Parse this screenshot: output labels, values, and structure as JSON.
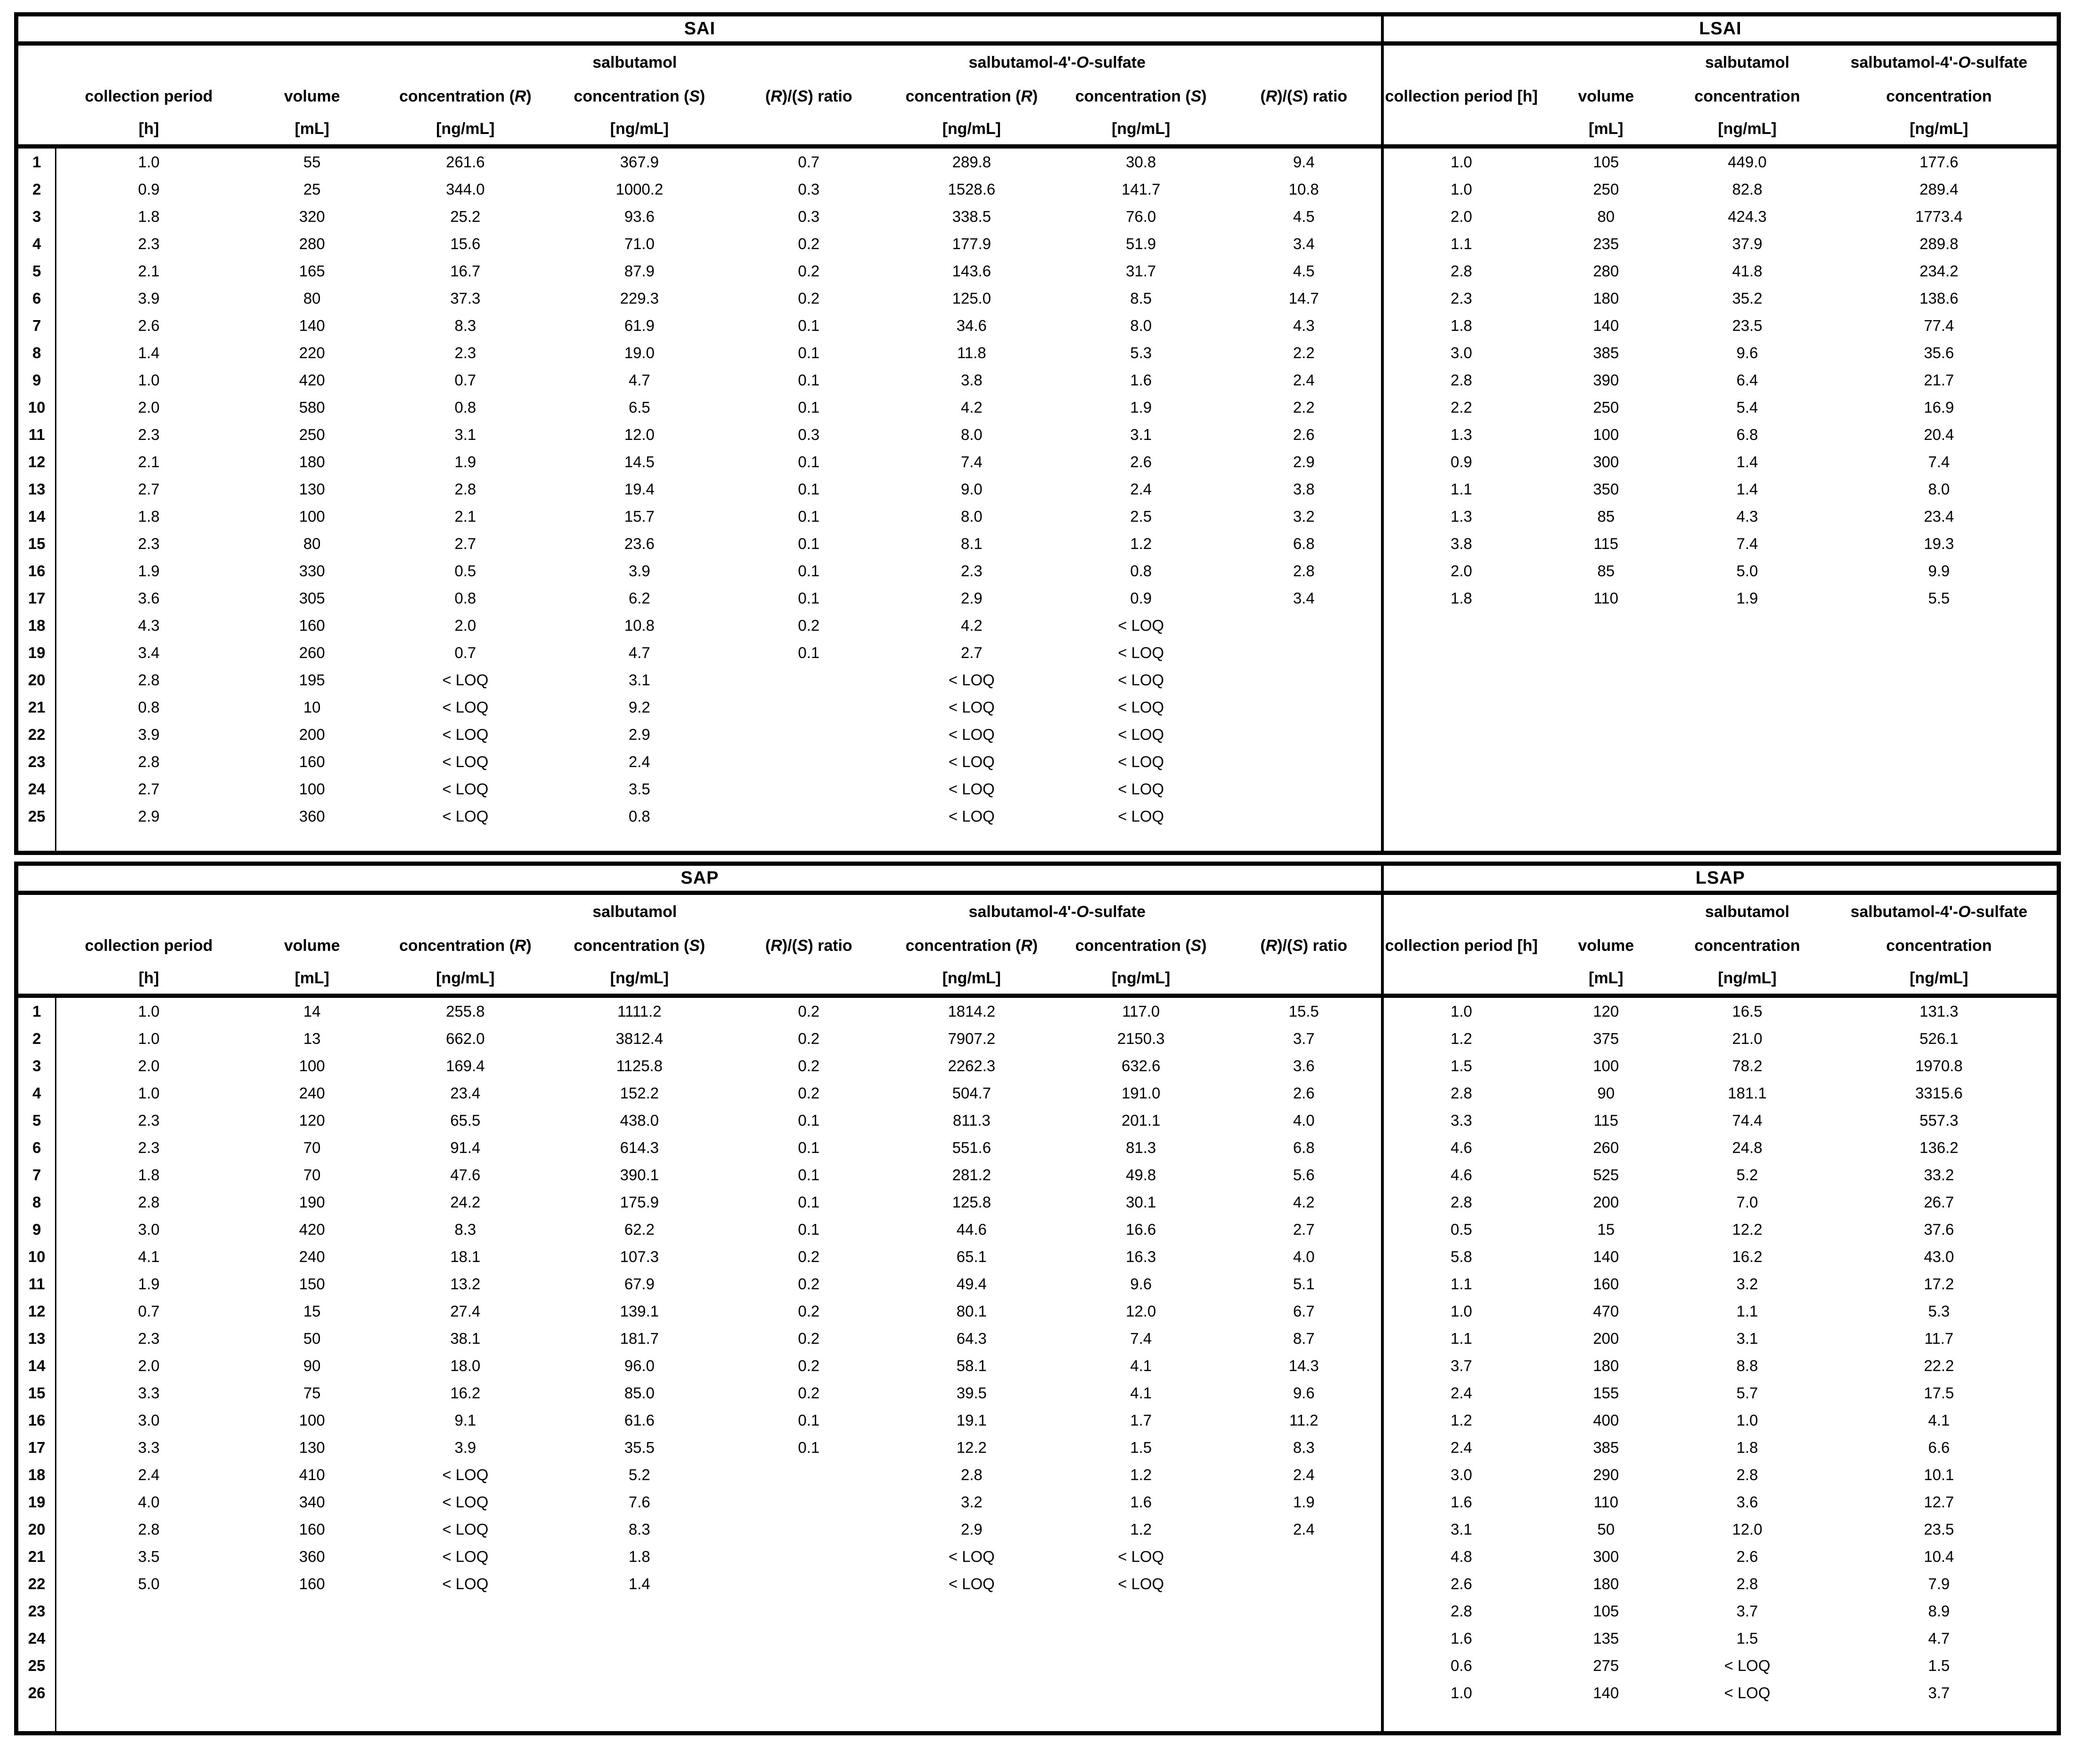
{
  "headers_left": {
    "group_salbutamol": "salbutamol",
    "group_sulfate": "salbutamol-4'-O-sulfate",
    "collection_period": "collection period",
    "collection_period_unit": "[h]",
    "volume": "volume",
    "volume_unit": "[mL]",
    "concentration_r": "concentration (R)",
    "concentration_s": "concentration (S)",
    "concentration_unit": "[ng/mL]",
    "ratio": "(R)/(S) ratio"
  },
  "headers_right": {
    "group_salbutamol": "salbutamol",
    "group_sulfate": "salbutamol-4'-O-sulfate",
    "collection_period": "collection period [h]",
    "volume": "volume",
    "volume_unit": "[mL]",
    "concentration": "concentration",
    "concentration_unit": "[ng/mL]"
  },
  "sections": {
    "sai": {
      "title": "SAI",
      "rows": [
        [
          "1",
          "1.0",
          "55",
          "261.6",
          "367.9",
          "0.7",
          "289.8",
          "30.8",
          "9.4"
        ],
        [
          "2",
          "0.9",
          "25",
          "344.0",
          "1000.2",
          "0.3",
          "1528.6",
          "141.7",
          "10.8"
        ],
        [
          "3",
          "1.8",
          "320",
          "25.2",
          "93.6",
          "0.3",
          "338.5",
          "76.0",
          "4.5"
        ],
        [
          "4",
          "2.3",
          "280",
          "15.6",
          "71.0",
          "0.2",
          "177.9",
          "51.9",
          "3.4"
        ],
        [
          "5",
          "2.1",
          "165",
          "16.7",
          "87.9",
          "0.2",
          "143.6",
          "31.7",
          "4.5"
        ],
        [
          "6",
          "3.9",
          "80",
          "37.3",
          "229.3",
          "0.2",
          "125.0",
          "8.5",
          "14.7"
        ],
        [
          "7",
          "2.6",
          "140",
          "8.3",
          "61.9",
          "0.1",
          "34.6",
          "8.0",
          "4.3"
        ],
        [
          "8",
          "1.4",
          "220",
          "2.3",
          "19.0",
          "0.1",
          "11.8",
          "5.3",
          "2.2"
        ],
        [
          "9",
          "1.0",
          "420",
          "0.7",
          "4.7",
          "0.1",
          "3.8",
          "1.6",
          "2.4"
        ],
        [
          "10",
          "2.0",
          "580",
          "0.8",
          "6.5",
          "0.1",
          "4.2",
          "1.9",
          "2.2"
        ],
        [
          "11",
          "2.3",
          "250",
          "3.1",
          "12.0",
          "0.3",
          "8.0",
          "3.1",
          "2.6"
        ],
        [
          "12",
          "2.1",
          "180",
          "1.9",
          "14.5",
          "0.1",
          "7.4",
          "2.6",
          "2.9"
        ],
        [
          "13",
          "2.7",
          "130",
          "2.8",
          "19.4",
          "0.1",
          "9.0",
          "2.4",
          "3.8"
        ],
        [
          "14",
          "1.8",
          "100",
          "2.1",
          "15.7",
          "0.1",
          "8.0",
          "2.5",
          "3.2"
        ],
        [
          "15",
          "2.3",
          "80",
          "2.7",
          "23.6",
          "0.1",
          "8.1",
          "1.2",
          "6.8"
        ],
        [
          "16",
          "1.9",
          "330",
          "0.5",
          "3.9",
          "0.1",
          "2.3",
          "0.8",
          "2.8"
        ],
        [
          "17",
          "3.6",
          "305",
          "0.8",
          "6.2",
          "0.1",
          "2.9",
          "0.9",
          "3.4"
        ],
        [
          "18",
          "4.3",
          "160",
          "2.0",
          "10.8",
          "0.2",
          "4.2",
          "< LOQ",
          ""
        ],
        [
          "19",
          "3.4",
          "260",
          "0.7",
          "4.7",
          "0.1",
          "2.7",
          "< LOQ",
          ""
        ],
        [
          "20",
          "2.8",
          "195",
          "< LOQ",
          "3.1",
          "",
          "< LOQ",
          "< LOQ",
          ""
        ],
        [
          "21",
          "0.8",
          "10",
          "< LOQ",
          "9.2",
          "",
          "< LOQ",
          "< LOQ",
          ""
        ],
        [
          "22",
          "3.9",
          "200",
          "< LOQ",
          "2.9",
          "",
          "< LOQ",
          "< LOQ",
          ""
        ],
        [
          "23",
          "2.8",
          "160",
          "< LOQ",
          "2.4",
          "",
          "< LOQ",
          "< LOQ",
          ""
        ],
        [
          "24",
          "2.7",
          "100",
          "< LOQ",
          "3.5",
          "",
          "< LOQ",
          "< LOQ",
          ""
        ],
        [
          "25",
          "2.9",
          "360",
          "< LOQ",
          "0.8",
          "",
          "< LOQ",
          "< LOQ",
          ""
        ]
      ]
    },
    "lsai": {
      "title": "LSAI",
      "rows": [
        [
          "1.0",
          "105",
          "449.0",
          "177.6"
        ],
        [
          "1.0",
          "250",
          "82.8",
          "289.4"
        ],
        [
          "2.0",
          "80",
          "424.3",
          "1773.4"
        ],
        [
          "1.1",
          "235",
          "37.9",
          "289.8"
        ],
        [
          "2.8",
          "280",
          "41.8",
          "234.2"
        ],
        [
          "2.3",
          "180",
          "35.2",
          "138.6"
        ],
        [
          "1.8",
          "140",
          "23.5",
          "77.4"
        ],
        [
          "3.0",
          "385",
          "9.6",
          "35.6"
        ],
        [
          "2.8",
          "390",
          "6.4",
          "21.7"
        ],
        [
          "2.2",
          "250",
          "5.4",
          "16.9"
        ],
        [
          "1.3",
          "100",
          "6.8",
          "20.4"
        ],
        [
          "0.9",
          "300",
          "1.4",
          "7.4"
        ],
        [
          "1.1",
          "350",
          "1.4",
          "8.0"
        ],
        [
          "1.3",
          "85",
          "4.3",
          "23.4"
        ],
        [
          "3.8",
          "115",
          "7.4",
          "19.3"
        ],
        [
          "2.0",
          "85",
          "5.0",
          "9.9"
        ],
        [
          "1.8",
          "110",
          "1.9",
          "5.5"
        ]
      ]
    },
    "sap": {
      "title": "SAP",
      "rows": [
        [
          "1",
          "1.0",
          "14",
          "255.8",
          "1111.2",
          "0.2",
          "1814.2",
          "117.0",
          "15.5"
        ],
        [
          "2",
          "1.0",
          "13",
          "662.0",
          "3812.4",
          "0.2",
          "7907.2",
          "2150.3",
          "3.7"
        ],
        [
          "3",
          "2.0",
          "100",
          "169.4",
          "1125.8",
          "0.2",
          "2262.3",
          "632.6",
          "3.6"
        ],
        [
          "4",
          "1.0",
          "240",
          "23.4",
          "152.2",
          "0.2",
          "504.7",
          "191.0",
          "2.6"
        ],
        [
          "5",
          "2.3",
          "120",
          "65.5",
          "438.0",
          "0.1",
          "811.3",
          "201.1",
          "4.0"
        ],
        [
          "6",
          "2.3",
          "70",
          "91.4",
          "614.3",
          "0.1",
          "551.6",
          "81.3",
          "6.8"
        ],
        [
          "7",
          "1.8",
          "70",
          "47.6",
          "390.1",
          "0.1",
          "281.2",
          "49.8",
          "5.6"
        ],
        [
          "8",
          "2.8",
          "190",
          "24.2",
          "175.9",
          "0.1",
          "125.8",
          "30.1",
          "4.2"
        ],
        [
          "9",
          "3.0",
          "420",
          "8.3",
          "62.2",
          "0.1",
          "44.6",
          "16.6",
          "2.7"
        ],
        [
          "10",
          "4.1",
          "240",
          "18.1",
          "107.3",
          "0.2",
          "65.1",
          "16.3",
          "4.0"
        ],
        [
          "11",
          "1.9",
          "150",
          "13.2",
          "67.9",
          "0.2",
          "49.4",
          "9.6",
          "5.1"
        ],
        [
          "12",
          "0.7",
          "15",
          "27.4",
          "139.1",
          "0.2",
          "80.1",
          "12.0",
          "6.7"
        ],
        [
          "13",
          "2.3",
          "50",
          "38.1",
          "181.7",
          "0.2",
          "64.3",
          "7.4",
          "8.7"
        ],
        [
          "14",
          "2.0",
          "90",
          "18.0",
          "96.0",
          "0.2",
          "58.1",
          "4.1",
          "14.3"
        ],
        [
          "15",
          "3.3",
          "75",
          "16.2",
          "85.0",
          "0.2",
          "39.5",
          "4.1",
          "9.6"
        ],
        [
          "16",
          "3.0",
          "100",
          "9.1",
          "61.6",
          "0.1",
          "19.1",
          "1.7",
          "11.2"
        ],
        [
          "17",
          "3.3",
          "130",
          "3.9",
          "35.5",
          "0.1",
          "12.2",
          "1.5",
          "8.3"
        ],
        [
          "18",
          "2.4",
          "410",
          "< LOQ",
          "5.2",
          "",
          "2.8",
          "1.2",
          "2.4"
        ],
        [
          "19",
          "4.0",
          "340",
          "< LOQ",
          "7.6",
          "",
          "3.2",
          "1.6",
          "1.9"
        ],
        [
          "20",
          "2.8",
          "160",
          "< LOQ",
          "8.3",
          "",
          "2.9",
          "1.2",
          "2.4"
        ],
        [
          "21",
          "3.5",
          "360",
          "< LOQ",
          "1.8",
          "",
          "< LOQ",
          "< LOQ",
          ""
        ],
        [
          "22",
          "5.0",
          "160",
          "< LOQ",
          "1.4",
          "",
          "< LOQ",
          "< LOQ",
          ""
        ],
        [
          "23",
          "",
          "",
          "",
          "",
          "",
          "",
          "",
          ""
        ],
        [
          "24",
          "",
          "",
          "",
          "",
          "",
          "",
          "",
          ""
        ],
        [
          "25",
          "",
          "",
          "",
          "",
          "",
          "",
          "",
          ""
        ],
        [
          "26",
          "",
          "",
          "",
          "",
          "",
          "",
          "",
          ""
        ]
      ]
    },
    "lsap": {
      "title": "LSAP",
      "rows": [
        [
          "1.0",
          "120",
          "16.5",
          "131.3"
        ],
        [
          "1.2",
          "375",
          "21.0",
          "526.1"
        ],
        [
          "1.5",
          "100",
          "78.2",
          "1970.8"
        ],
        [
          "2.8",
          "90",
          "181.1",
          "3315.6"
        ],
        [
          "3.3",
          "115",
          "74.4",
          "557.3"
        ],
        [
          "4.6",
          "260",
          "24.8",
          "136.2"
        ],
        [
          "4.6",
          "525",
          "5.2",
          "33.2"
        ],
        [
          "2.8",
          "200",
          "7.0",
          "26.7"
        ],
        [
          "0.5",
          "15",
          "12.2",
          "37.6"
        ],
        [
          "5.8",
          "140",
          "16.2",
          "43.0"
        ],
        [
          "1.1",
          "160",
          "3.2",
          "17.2"
        ],
        [
          "1.0",
          "470",
          "1.1",
          "5.3"
        ],
        [
          "1.1",
          "200",
          "3.1",
          "11.7"
        ],
        [
          "3.7",
          "180",
          "8.8",
          "22.2"
        ],
        [
          "2.4",
          "155",
          "5.7",
          "17.5"
        ],
        [
          "1.2",
          "400",
          "1.0",
          "4.1"
        ],
        [
          "2.4",
          "385",
          "1.8",
          "6.6"
        ],
        [
          "3.0",
          "290",
          "2.8",
          "10.1"
        ],
        [
          "1.6",
          "110",
          "3.6",
          "12.7"
        ],
        [
          "3.1",
          "50",
          "12.0",
          "23.5"
        ],
        [
          "4.8",
          "300",
          "2.6",
          "10.4"
        ],
        [
          "2.6",
          "180",
          "2.8",
          "7.9"
        ],
        [
          "2.8",
          "105",
          "3.7",
          "8.9"
        ],
        [
          "1.6",
          "135",
          "1.5",
          "4.7"
        ],
        [
          "0.6",
          "275",
          "< LOQ",
          "1.5"
        ],
        [
          "1.0",
          "140",
          "< LOQ",
          "3.7"
        ]
      ]
    }
  }
}
